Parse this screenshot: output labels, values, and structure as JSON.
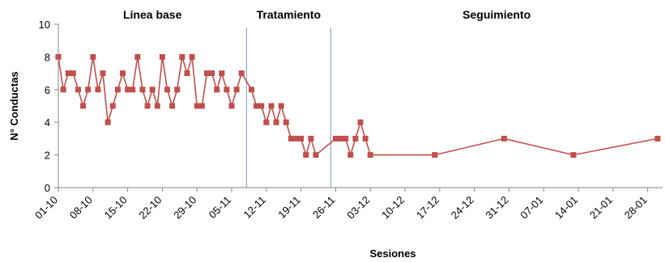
{
  "chart_data": {
    "type": "line",
    "xlabel": "Sesiones",
    "ylabel": "N° Conductas",
    "ylim": [
      0,
      10
    ],
    "yticks": [
      0,
      2,
      4,
      6,
      8,
      10
    ],
    "x_range": [
      "2024-10-01",
      "2025-01-31"
    ],
    "x_tick_labels": [
      "01-10",
      "08-10",
      "15-10",
      "22-10",
      "29-10",
      "05-11",
      "12-11",
      "19-11",
      "26-11",
      "03-12",
      "10-12",
      "17-12",
      "24-12",
      "31-12",
      "07-01",
      "14-01",
      "21-01",
      "28-01"
    ],
    "phases": [
      {
        "label": "Línea base",
        "start": "2024-10-01"
      },
      {
        "label": "Tratamiento",
        "start": "2024-11-08"
      },
      {
        "label": "Seguimiento",
        "start": "2024-11-25"
      }
    ],
    "color": "#c0504d",
    "phase_line_color": "#8ea6c8",
    "grid": false,
    "series": [
      {
        "points": [
          [
            "2024-10-01",
            8
          ],
          [
            "2024-10-02",
            6
          ],
          [
            "2024-10-03",
            7
          ],
          [
            "2024-10-04",
            7
          ],
          [
            "2024-10-05",
            6
          ],
          [
            "2024-10-06",
            5
          ],
          [
            "2024-10-07",
            6
          ],
          [
            "2024-10-08",
            8
          ],
          [
            "2024-10-09",
            6
          ],
          [
            "2024-10-10",
            7
          ],
          [
            "2024-10-11",
            4
          ],
          [
            "2024-10-12",
            5
          ],
          [
            "2024-10-13",
            6
          ],
          [
            "2024-10-14",
            7
          ],
          [
            "2024-10-15",
            6
          ],
          [
            "2024-10-16",
            6
          ],
          [
            "2024-10-17",
            8
          ],
          [
            "2024-10-18",
            6
          ],
          [
            "2024-10-19",
            5
          ],
          [
            "2024-10-20",
            6
          ],
          [
            "2024-10-21",
            5
          ],
          [
            "2024-10-22",
            8
          ],
          [
            "2024-10-23",
            6
          ],
          [
            "2024-10-24",
            5
          ],
          [
            "2024-10-25",
            6
          ],
          [
            "2024-10-26",
            8
          ],
          [
            "2024-10-27",
            7
          ],
          [
            "2024-10-28",
            8
          ],
          [
            "2024-10-29",
            5
          ],
          [
            "2024-10-30",
            5
          ],
          [
            "2024-10-31",
            7
          ],
          [
            "2024-11-01",
            7
          ],
          [
            "2024-11-02",
            6
          ],
          [
            "2024-11-03",
            7
          ],
          [
            "2024-11-04",
            6
          ],
          [
            "2024-11-05",
            5
          ],
          [
            "2024-11-06",
            6
          ],
          [
            "2024-11-07",
            7
          ],
          [
            "2024-11-09",
            6
          ],
          [
            "2024-11-10",
            5
          ],
          [
            "2024-11-11",
            5
          ],
          [
            "2024-11-12",
            4
          ],
          [
            "2024-11-13",
            5
          ],
          [
            "2024-11-14",
            4
          ],
          [
            "2024-11-15",
            5
          ],
          [
            "2024-11-16",
            4
          ],
          [
            "2024-11-17",
            3
          ],
          [
            "2024-11-18",
            3
          ],
          [
            "2024-11-19",
            3
          ],
          [
            "2024-11-20",
            2
          ],
          [
            "2024-11-21",
            3
          ],
          [
            "2024-11-22",
            2
          ],
          [
            "2024-11-26",
            3
          ],
          [
            "2024-11-27",
            3
          ],
          [
            "2024-11-28",
            3
          ],
          [
            "2024-11-29",
            2
          ],
          [
            "2024-11-30",
            3
          ],
          [
            "2024-12-01",
            4
          ],
          [
            "2024-12-02",
            3
          ],
          [
            "2024-12-03",
            2
          ],
          [
            "2024-12-16",
            2
          ],
          [
            "2024-12-30",
            3
          ],
          [
            "2025-01-13",
            2
          ],
          [
            "2025-01-30",
            3
          ]
        ]
      }
    ]
  }
}
